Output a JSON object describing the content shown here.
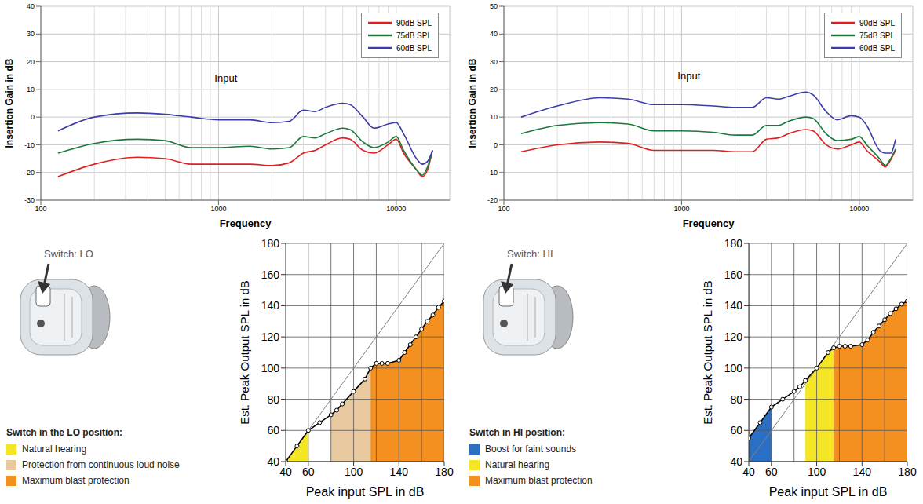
{
  "chart_data": [
    {
      "type": "line",
      "xlabel": "Frequency",
      "ylabel": "Insertion Gain in dB",
      "log": "x",
      "grid": true,
      "legend": "top-right",
      "xlim": [
        100,
        20000
      ],
      "xticks": [
        100,
        1000,
        10000
      ],
      "ylim": [
        -30,
        40
      ],
      "yticks": [
        -30,
        -20,
        -10,
        0,
        10,
        20,
        30,
        40
      ],
      "annotations": [
        {
          "text": "Input",
          "x": 1100,
          "y": 14
        }
      ],
      "x": [
        125,
        200,
        350,
        500,
        700,
        1000,
        1500,
        2000,
        2500,
        3000,
        3500,
        4000,
        5000,
        5500,
        6500,
        7500,
        9000,
        10000,
        11000,
        13000,
        14000,
        15000,
        16000
      ],
      "series": [
        {
          "name": "90dB SPL",
          "color": "#e02020",
          "values": [
            -21.5,
            -17,
            -14.5,
            -15,
            -17,
            -17,
            -17,
            -17.5,
            -16.5,
            -13,
            -12,
            -10,
            -7.5,
            -8,
            -12,
            -13,
            -10,
            -8,
            -13,
            -19,
            -21.5,
            -19,
            -12
          ]
        },
        {
          "name": "75dB SPL",
          "color": "#1a7a3a",
          "values": [
            -13,
            -9.5,
            -8,
            -8.5,
            -11,
            -11,
            -10.5,
            -11.5,
            -11,
            -7,
            -7.5,
            -6,
            -4,
            -4.5,
            -9,
            -11,
            -9,
            -7,
            -12,
            -19,
            -21,
            -18,
            -12
          ]
        },
        {
          "name": "60dB SPL",
          "color": "#3c3ca8",
          "values": [
            -5,
            0,
            1.5,
            1,
            0,
            -1,
            -1,
            -2,
            -1.5,
            2.5,
            2,
            3.5,
            5,
            4.5,
            0,
            -4,
            -2.5,
            -2,
            -6,
            -15,
            -17,
            -16,
            -12
          ]
        }
      ]
    },
    {
      "type": "line",
      "xlabel": "Frequency",
      "ylabel": "Insertion Gain in dB",
      "log": "x",
      "grid": true,
      "legend": "top-right",
      "xlim": [
        100,
        20000
      ],
      "xticks": [
        100,
        1000,
        10000
      ],
      "ylim": [
        -20,
        50
      ],
      "yticks": [
        -20,
        -10,
        0,
        10,
        20,
        30,
        40,
        50
      ],
      "annotations": [
        {
          "text": "Input",
          "x": 1100,
          "y": 25
        }
      ],
      "x": [
        125,
        200,
        350,
        500,
        700,
        1000,
        1500,
        2000,
        2500,
        3000,
        3500,
        4000,
        5000,
        5500,
        6500,
        7500,
        9000,
        10000,
        11000,
        13000,
        14000,
        15000,
        16000
      ],
      "series": [
        {
          "name": "90dB SPL",
          "color": "#e02020",
          "values": [
            -2.5,
            0,
            1,
            0.5,
            -2,
            -2,
            -2,
            -2.5,
            -2.5,
            2,
            2.5,
            4,
            5.5,
            5,
            0,
            -1.5,
            0,
            1,
            -2,
            -6,
            -8,
            -5.5,
            -2
          ]
        },
        {
          "name": "75dB SPL",
          "color": "#1a7a3a",
          "values": [
            4,
            7,
            8,
            7.5,
            5,
            5,
            4.5,
            3.5,
            3.5,
            7,
            7,
            8.5,
            10,
            9.5,
            4,
            1.5,
            2,
            3,
            0,
            -5,
            -7.5,
            -5,
            -1.5
          ]
        },
        {
          "name": "60dB SPL",
          "color": "#3c3ca8",
          "values": [
            10,
            14,
            17,
            16.5,
            14.5,
            14.5,
            14,
            13.5,
            13.5,
            17,
            16.5,
            17.5,
            19,
            18,
            12,
            9,
            10.5,
            10,
            7,
            -2,
            -3,
            -3,
            2
          ]
        }
      ]
    },
    {
      "type": "line",
      "subtitle": "Switch: LO",
      "legend_title": "Switch in the LO position:",
      "xlabel": "Peak input SPL in dB",
      "ylabel": "Est. Peak Output SPL in dB",
      "grid": true,
      "legend": "left",
      "xlim": [
        40,
        180
      ],
      "xticks": [
        40,
        60,
        100,
        140,
        180
      ],
      "ylim": [
        40,
        180
      ],
      "yticks": [
        40,
        60,
        80,
        100,
        120,
        140,
        160,
        180
      ],
      "x": [
        40,
        50,
        60,
        70,
        80,
        85,
        90,
        100,
        110,
        115,
        120,
        125,
        130,
        140,
        145,
        150,
        155,
        160,
        165,
        170,
        175,
        180
      ],
      "series": [
        {
          "name": "Natural hearing",
          "type": "area",
          "color": "#f5e625",
          "values": [
            40,
            50,
            60,
            null,
            null,
            null,
            null,
            null,
            null,
            null,
            null,
            null,
            null,
            null,
            null,
            null,
            null,
            null,
            null,
            null,
            null,
            null
          ]
        },
        {
          "name": "Protection from continuous loud noise",
          "type": "area",
          "color": "#e9c9a0",
          "values": [
            null,
            null,
            null,
            null,
            70,
            73,
            77,
            85,
            93,
            100,
            null,
            null,
            null,
            null,
            null,
            null,
            null,
            null,
            null,
            null,
            null,
            null
          ]
        },
        {
          "name": "Maximum blast protection",
          "type": "area",
          "color": "#f39020",
          "values": [
            null,
            null,
            null,
            null,
            null,
            null,
            null,
            null,
            null,
            100,
            103,
            103,
            103,
            105,
            110,
            115,
            120,
            125,
            130,
            134,
            139,
            143
          ]
        },
        {
          "type": "line",
          "color": "#808080",
          "marker": "none",
          "values": [
            40,
            50,
            60,
            70,
            80,
            85,
            90,
            100,
            110,
            115,
            120,
            125,
            130,
            140,
            145,
            150,
            155,
            160,
            165,
            170,
            175,
            180
          ]
        },
        {
          "type": "line",
          "color": "#000000",
          "marker": "circle",
          "values": [
            40,
            50,
            60,
            65,
            70,
            73,
            77,
            85,
            93,
            100,
            103,
            103,
            103,
            105,
            110,
            115,
            120,
            125,
            130,
            134,
            139,
            143
          ]
        }
      ]
    },
    {
      "type": "line",
      "subtitle": "Switch: HI",
      "legend_title": "Switch in HI position:",
      "xlabel": "Peak input SPL in dB",
      "ylabel": "Est. Peak Output SPL in dB",
      "grid": true,
      "legend": "left",
      "xlim": [
        40,
        180
      ],
      "xticks": [
        40,
        60,
        100,
        140,
        180
      ],
      "ylim": [
        40,
        180
      ],
      "yticks": [
        40,
        60,
        80,
        100,
        120,
        140,
        160,
        180
      ],
      "x": [
        40,
        50,
        60,
        70,
        80,
        85,
        90,
        100,
        110,
        115,
        120,
        125,
        130,
        140,
        145,
        150,
        155,
        160,
        165,
        170,
        175,
        180
      ],
      "series": [
        {
          "name": "Boost for faint sounds",
          "type": "area",
          "color": "#2a6fc4",
          "values": [
            55,
            65,
            75,
            null,
            null,
            null,
            null,
            null,
            null,
            null,
            null,
            null,
            null,
            null,
            null,
            null,
            null,
            null,
            null,
            null,
            null,
            null
          ]
        },
        {
          "name": "Natural hearing",
          "type": "area",
          "color": "#f5e625",
          "values": [
            null,
            null,
            null,
            null,
            null,
            null,
            92,
            100,
            110,
            113,
            null,
            null,
            null,
            null,
            null,
            null,
            null,
            null,
            null,
            null,
            null,
            null
          ]
        },
        {
          "name": "Maximum blast protection",
          "type": "area",
          "color": "#f39020",
          "values": [
            null,
            null,
            null,
            null,
            null,
            null,
            null,
            null,
            null,
            113,
            114,
            114,
            114,
            115,
            118,
            123,
            127,
            131,
            135,
            138,
            141,
            143
          ]
        },
        {
          "type": "line",
          "color": "#808080",
          "marker": "none",
          "values": [
            40,
            50,
            60,
            70,
            80,
            85,
            90,
            100,
            110,
            115,
            120,
            125,
            130,
            140,
            145,
            150,
            155,
            160,
            165,
            170,
            175,
            180
          ]
        },
        {
          "type": "line",
          "color": "#000000",
          "marker": "circle",
          "values": [
            55,
            65,
            75,
            80,
            85,
            88,
            92,
            100,
            110,
            113,
            114,
            114,
            114,
            115,
            118,
            123,
            127,
            131,
            135,
            138,
            141,
            143
          ]
        }
      ]
    }
  ]
}
